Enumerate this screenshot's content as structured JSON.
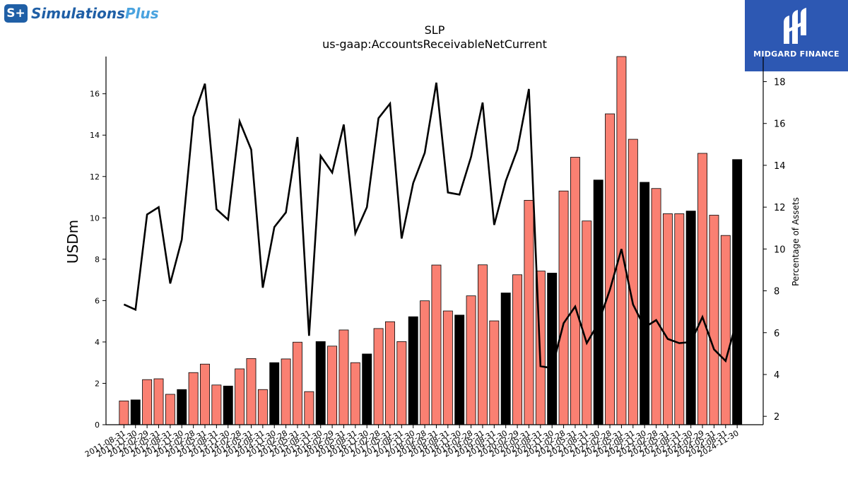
{
  "logo_left": {
    "badge": "S+",
    "word1": "Simulations",
    "word2": "Plus"
  },
  "logo_right": {
    "text": "MIDGARD FINANCE"
  },
  "chart_data": {
    "type": "bar",
    "title": "SLP",
    "subtitle": "us-gaap:AccountsReceivableNetCurrent",
    "ylabel": "USDm",
    "y2label": "Percentage of Assets",
    "ylim": [
      0,
      17.8
    ],
    "y2lim": [
      1.6,
      19.2
    ],
    "yticks": [
      0,
      2,
      4,
      6,
      8,
      10,
      12,
      14,
      16
    ],
    "y2ticks": [
      2,
      4,
      6,
      8,
      10,
      12,
      14,
      16,
      18
    ],
    "categories": [
      "2011-08-31",
      "2011-11-30",
      "2012-02-29",
      "2012-05-31",
      "2012-08-31",
      "2012-11-30",
      "2013-02-28",
      "2013-05-31",
      "2013-08-31",
      "2013-11-30",
      "2014-02-28",
      "2014-05-31",
      "2014-08-31",
      "2014-11-30",
      "2015-02-28",
      "2015-05-31",
      "2015-08-31",
      "2015-11-30",
      "2016-02-29",
      "2016-05-31",
      "2016-08-31",
      "2016-11-30",
      "2017-02-28",
      "2017-05-31",
      "2017-08-31",
      "2017-11-30",
      "2018-02-28",
      "2018-05-31",
      "2018-08-31",
      "2018-11-30",
      "2019-02-28",
      "2019-05-31",
      "2019-08-31",
      "2019-11-30",
      "2020-02-29",
      "2020-05-31",
      "2020-08-31",
      "2020-11-30",
      "2021-02-28",
      "2021-05-31",
      "2021-08-31",
      "2021-11-30",
      "2022-02-28",
      "2022-05-31",
      "2022-08-31",
      "2022-11-30",
      "2023-02-28",
      "2023-05-31",
      "2023-08-31",
      "2023-11-30",
      "2024-02-29",
      "2024-05-31",
      "2024-08-31",
      "2024-11-30"
    ],
    "series": [
      {
        "type": "bar",
        "values": [
          1.15,
          1.2,
          2.18,
          2.22,
          1.47,
          1.7,
          2.52,
          2.93,
          1.92,
          1.87,
          2.7,
          3.2,
          1.7,
          3.0,
          3.18,
          3.99,
          1.6,
          4.02,
          3.8,
          4.58,
          3.0,
          3.42,
          4.65,
          4.98,
          4.02,
          5.22,
          5.99,
          7.72,
          5.5,
          5.3,
          6.23,
          7.73,
          5.02,
          6.37,
          7.25,
          10.85,
          7.43,
          7.33,
          11.3,
          12.93,
          9.85,
          11.83,
          15.03,
          17.93,
          13.8,
          11.72,
          11.42,
          10.2,
          10.2,
          10.33,
          13.12,
          10.13,
          9.15,
          12.82
        ],
        "annual": [
          false,
          true,
          false,
          false,
          false,
          true,
          false,
          false,
          false,
          true,
          false,
          false,
          false,
          true,
          false,
          false,
          false,
          true,
          false,
          false,
          false,
          true,
          false,
          false,
          false,
          true,
          false,
          false,
          false,
          true,
          false,
          false,
          false,
          true,
          false,
          false,
          false,
          true,
          false,
          false,
          false,
          true,
          false,
          false,
          false,
          true,
          false,
          false,
          false,
          true,
          false,
          false,
          false,
          true
        ],
        "color_quarterly": "#fa8072",
        "color_annual": "#000000"
      },
      {
        "type": "line",
        "axis": "right",
        "color": "#000000",
        "values": [
          7.35,
          7.1,
          11.65,
          12.0,
          8.35,
          10.45,
          16.3,
          17.9,
          11.9,
          11.4,
          16.1,
          14.75,
          8.15,
          11.05,
          11.75,
          15.35,
          5.85,
          14.45,
          13.65,
          15.95,
          10.75,
          12.0,
          16.25,
          16.95,
          10.5,
          13.15,
          14.6,
          17.95,
          12.7,
          12.6,
          14.4,
          17.0,
          11.15,
          13.25,
          14.75,
          17.65,
          4.4,
          4.3,
          6.45,
          7.25,
          5.5,
          6.45,
          8.05,
          10.0,
          7.35,
          6.25,
          6.6,
          5.7,
          5.5,
          5.55,
          6.75,
          5.2,
          4.65,
          6.65
        ]
      }
    ],
    "grid": false,
    "legend": "none"
  }
}
